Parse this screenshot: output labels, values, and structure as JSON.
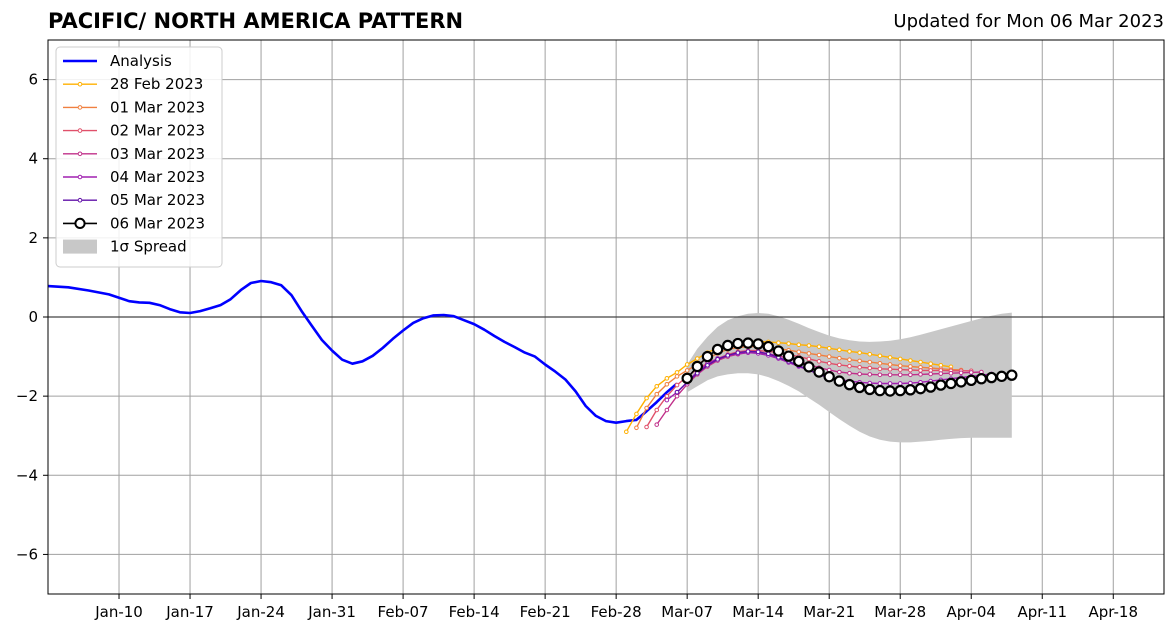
{
  "title": "PACIFIC/ NORTH AMERICA PATTERN",
  "updated": "Updated for Mon 06 Mar 2023",
  "chart_data": {
    "type": "line",
    "title": "PACIFIC/ NORTH AMERICA PATTERN",
    "xlabel": "",
    "ylabel": "",
    "xlim": [
      "2023-01-03",
      "2023-04-23"
    ],
    "ylim": [
      -7,
      7
    ],
    "grid": true,
    "legend_placement": "top-left",
    "x_ticks": [
      "Jan-10",
      "Jan-17",
      "Jan-24",
      "Jan-31",
      "Feb-07",
      "Feb-14",
      "Feb-21",
      "Feb-28",
      "Mar-07",
      "Mar-14",
      "Mar-21",
      "Mar-28",
      "Apr-04",
      "Apr-11",
      "Apr-18"
    ],
    "x_tick_dates": [
      "2023-01-10",
      "2023-01-17",
      "2023-01-24",
      "2023-01-31",
      "2023-02-07",
      "2023-02-14",
      "2023-02-21",
      "2023-02-28",
      "2023-03-07",
      "2023-03-14",
      "2023-03-21",
      "2023-03-28",
      "2023-04-04",
      "2023-04-11",
      "2023-04-18"
    ],
    "y_ticks": [
      -6,
      -4,
      -2,
      0,
      2,
      4,
      6
    ],
    "y_tick_labels": [
      "−6",
      "−4",
      "−2",
      "0",
      "2",
      "4",
      "6"
    ],
    "zero_line": 0,
    "series": [
      {
        "name": "Analysis",
        "kind": "analysis",
        "color": "#0000ff",
        "x": [
          "2023-01-03",
          "2023-01-05",
          "2023-01-07",
          "2023-01-09",
          "2023-01-11",
          "2023-01-12",
          "2023-01-13",
          "2023-01-14",
          "2023-01-15",
          "2023-01-16",
          "2023-01-17",
          "2023-01-18",
          "2023-01-19",
          "2023-01-20",
          "2023-01-21",
          "2023-01-22",
          "2023-01-23",
          "2023-01-24",
          "2023-01-25",
          "2023-01-26",
          "2023-01-27",
          "2023-01-28",
          "2023-01-29",
          "2023-01-30",
          "2023-01-31",
          "2023-02-01",
          "2023-02-02",
          "2023-02-03",
          "2023-02-04",
          "2023-02-05",
          "2023-02-06",
          "2023-02-07",
          "2023-02-08",
          "2023-02-09",
          "2023-02-10",
          "2023-02-11",
          "2023-02-12",
          "2023-02-13",
          "2023-02-14",
          "2023-02-15",
          "2023-02-16",
          "2023-02-17",
          "2023-02-18",
          "2023-02-19",
          "2023-02-20",
          "2023-02-21",
          "2023-02-22",
          "2023-02-23",
          "2023-02-24",
          "2023-02-25",
          "2023-02-26",
          "2023-02-27",
          "2023-02-28",
          "2023-03-01",
          "2023-03-02",
          "2023-03-03",
          "2023-03-04",
          "2023-03-05",
          "2023-03-06"
        ],
        "y": [
          0.78,
          0.75,
          0.67,
          0.57,
          0.4,
          0.37,
          0.36,
          0.3,
          0.2,
          0.12,
          0.1,
          0.15,
          0.22,
          0.3,
          0.45,
          0.68,
          0.86,
          0.91,
          0.88,
          0.8,
          0.55,
          0.15,
          -0.22,
          -0.58,
          -0.85,
          -1.08,
          -1.18,
          -1.12,
          -0.98,
          -0.78,
          -0.55,
          -0.34,
          -0.15,
          -0.03,
          0.04,
          0.05,
          0.02,
          -0.08,
          -0.18,
          -0.32,
          -0.48,
          -0.63,
          -0.76,
          -0.9,
          -1.0,
          -1.2,
          -1.38,
          -1.58,
          -1.88,
          -2.25,
          -2.5,
          -2.63,
          -2.67,
          -2.63,
          -2.6,
          -2.38,
          -2.15,
          -1.9,
          -1.68
        ]
      },
      {
        "name": "28 Feb 2023",
        "kind": "forecast",
        "color": "#ffb000",
        "x": [
          "2023-03-01",
          "2023-03-02",
          "2023-03-03",
          "2023-03-04",
          "2023-03-05",
          "2023-03-06",
          "2023-03-07",
          "2023-03-08",
          "2023-03-09",
          "2023-03-10",
          "2023-03-11",
          "2023-03-12",
          "2023-03-13",
          "2023-03-14",
          "2023-03-15",
          "2023-03-16",
          "2023-03-17",
          "2023-03-18",
          "2023-03-19",
          "2023-03-20",
          "2023-03-21",
          "2023-03-22",
          "2023-03-23",
          "2023-03-24",
          "2023-03-25",
          "2023-03-26",
          "2023-03-27",
          "2023-03-28",
          "2023-03-29",
          "2023-03-30",
          "2023-03-31",
          "2023-04-01",
          "2023-04-02"
        ],
        "y": [
          -2.9,
          -2.45,
          -2.05,
          -1.75,
          -1.55,
          -1.4,
          -1.2,
          -1.05,
          -0.9,
          -0.78,
          -0.7,
          -0.65,
          -0.62,
          -0.62,
          -0.63,
          -0.65,
          -0.67,
          -0.7,
          -0.72,
          -0.75,
          -0.79,
          -0.83,
          -0.87,
          -0.9,
          -0.94,
          -0.98,
          -1.02,
          -1.06,
          -1.1,
          -1.14,
          -1.18,
          -1.22,
          -1.26
        ]
      },
      {
        "name": "01 Mar 2023",
        "kind": "forecast",
        "color": "#f08040",
        "x": [
          "2023-03-02",
          "2023-03-03",
          "2023-03-04",
          "2023-03-05",
          "2023-03-06",
          "2023-03-07",
          "2023-03-08",
          "2023-03-09",
          "2023-03-10",
          "2023-03-11",
          "2023-03-12",
          "2023-03-13",
          "2023-03-14",
          "2023-03-15",
          "2023-03-16",
          "2023-03-17",
          "2023-03-18",
          "2023-03-19",
          "2023-03-20",
          "2023-03-21",
          "2023-03-22",
          "2023-03-23",
          "2023-03-24",
          "2023-03-25",
          "2023-03-26",
          "2023-03-27",
          "2023-03-28",
          "2023-03-29",
          "2023-03-30",
          "2023-03-31",
          "2023-04-01",
          "2023-04-02",
          "2023-04-03"
        ],
        "y": [
          -2.8,
          -2.3,
          -1.95,
          -1.7,
          -1.5,
          -1.35,
          -1.2,
          -1.05,
          -0.92,
          -0.82,
          -0.77,
          -0.75,
          -0.75,
          -0.77,
          -0.8,
          -0.84,
          -0.88,
          -0.92,
          -0.96,
          -1.0,
          -1.04,
          -1.08,
          -1.11,
          -1.14,
          -1.17,
          -1.2,
          -1.23,
          -1.25,
          -1.27,
          -1.29,
          -1.31,
          -1.33,
          -1.34
        ]
      },
      {
        "name": "02 Mar 2023",
        "kind": "forecast",
        "color": "#e0506a",
        "x": [
          "2023-03-03",
          "2023-03-04",
          "2023-03-05",
          "2023-03-06",
          "2023-03-07",
          "2023-03-08",
          "2023-03-09",
          "2023-03-10",
          "2023-03-11",
          "2023-03-12",
          "2023-03-13",
          "2023-03-14",
          "2023-03-15",
          "2023-03-16",
          "2023-03-17",
          "2023-03-18",
          "2023-03-19",
          "2023-03-20",
          "2023-03-21",
          "2023-03-22",
          "2023-03-23",
          "2023-03-24",
          "2023-03-25",
          "2023-03-26",
          "2023-03-27",
          "2023-03-28",
          "2023-03-29",
          "2023-03-30",
          "2023-03-31",
          "2023-04-01",
          "2023-04-02",
          "2023-04-03",
          "2023-04-04"
        ],
        "y": [
          -2.78,
          -2.35,
          -2.0,
          -1.72,
          -1.5,
          -1.32,
          -1.17,
          -1.05,
          -0.95,
          -0.88,
          -0.85,
          -0.85,
          -0.87,
          -0.9,
          -0.95,
          -1.0,
          -1.06,
          -1.12,
          -1.17,
          -1.21,
          -1.24,
          -1.27,
          -1.29,
          -1.31,
          -1.32,
          -1.33,
          -1.34,
          -1.35,
          -1.35,
          -1.35,
          -1.36,
          -1.36,
          -1.36
        ]
      },
      {
        "name": "03 Mar 2023",
        "kind": "forecast",
        "color": "#c0308a",
        "x": [
          "2023-03-04",
          "2023-03-05",
          "2023-03-06",
          "2023-03-07",
          "2023-03-08",
          "2023-03-09",
          "2023-03-10",
          "2023-03-11",
          "2023-03-12",
          "2023-03-13",
          "2023-03-14",
          "2023-03-15",
          "2023-03-16",
          "2023-03-17",
          "2023-03-18",
          "2023-03-19",
          "2023-03-20",
          "2023-03-21",
          "2023-03-22",
          "2023-03-23",
          "2023-03-24",
          "2023-03-25",
          "2023-03-26",
          "2023-03-27",
          "2023-03-28",
          "2023-03-29",
          "2023-03-30",
          "2023-03-31",
          "2023-04-01",
          "2023-04-02",
          "2023-04-03",
          "2023-04-04",
          "2023-04-05"
        ],
        "y": [
          -2.72,
          -2.35,
          -2.0,
          -1.7,
          -1.45,
          -1.25,
          -1.1,
          -1.0,
          -0.94,
          -0.9,
          -0.9,
          -0.93,
          -0.98,
          -1.05,
          -1.12,
          -1.2,
          -1.28,
          -1.34,
          -1.39,
          -1.42,
          -1.44,
          -1.45,
          -1.46,
          -1.46,
          -1.46,
          -1.46,
          -1.45,
          -1.44,
          -1.43,
          -1.42,
          -1.41,
          -1.4,
          -1.39
        ]
      },
      {
        "name": "04 Mar 2023",
        "kind": "forecast",
        "color": "#a020b0",
        "x": [
          "2023-03-05",
          "2023-03-06",
          "2023-03-07",
          "2023-03-08",
          "2023-03-09",
          "2023-03-10",
          "2023-03-11",
          "2023-03-12",
          "2023-03-13",
          "2023-03-14",
          "2023-03-15",
          "2023-03-16",
          "2023-03-17",
          "2023-03-18",
          "2023-03-19",
          "2023-03-20",
          "2023-03-21",
          "2023-03-22",
          "2023-03-23",
          "2023-03-24",
          "2023-03-25",
          "2023-03-26",
          "2023-03-27",
          "2023-03-28",
          "2023-03-29",
          "2023-03-30",
          "2023-03-31",
          "2023-04-01",
          "2023-04-02",
          "2023-04-03",
          "2023-04-04",
          "2023-04-05",
          "2023-04-06"
        ],
        "y": [
          -2.1,
          -1.9,
          -1.65,
          -1.38,
          -1.18,
          -1.05,
          -0.97,
          -0.93,
          -0.9,
          -0.92,
          -0.97,
          -1.05,
          -1.15,
          -1.25,
          -1.35,
          -1.44,
          -1.52,
          -1.58,
          -1.62,
          -1.65,
          -1.67,
          -1.68,
          -1.68,
          -1.68,
          -1.67,
          -1.65,
          -1.62,
          -1.59,
          -1.56,
          -1.53,
          -1.5,
          -1.47,
          -1.44
        ]
      },
      {
        "name": "05 Mar 2023",
        "kind": "forecast",
        "color": "#6010a8",
        "x": [
          "2023-03-06",
          "2023-03-07",
          "2023-03-08",
          "2023-03-09",
          "2023-03-10",
          "2023-03-11",
          "2023-03-12",
          "2023-03-13",
          "2023-03-14",
          "2023-03-15",
          "2023-03-16",
          "2023-03-17",
          "2023-03-18",
          "2023-03-19",
          "2023-03-20",
          "2023-03-21",
          "2023-03-22",
          "2023-03-23",
          "2023-03-24",
          "2023-03-25",
          "2023-03-26",
          "2023-03-27",
          "2023-03-28",
          "2023-03-29",
          "2023-03-30",
          "2023-03-31",
          "2023-04-01",
          "2023-04-02",
          "2023-04-03",
          "2023-04-04",
          "2023-04-05",
          "2023-04-06",
          "2023-04-07"
        ],
        "y": [
          -1.9,
          -1.65,
          -1.42,
          -1.22,
          -1.07,
          -0.97,
          -0.9,
          -0.87,
          -0.88,
          -0.93,
          -1.02,
          -1.12,
          -1.23,
          -1.34,
          -1.45,
          -1.55,
          -1.63,
          -1.7,
          -1.75,
          -1.79,
          -1.81,
          -1.82,
          -1.82,
          -1.81,
          -1.79,
          -1.76,
          -1.72,
          -1.68,
          -1.64,
          -1.6,
          -1.56,
          -1.52,
          -1.49
        ]
      },
      {
        "name": "06 Mar 2023",
        "kind": "latest",
        "color": "#000000",
        "x": [
          "2023-03-07",
          "2023-03-08",
          "2023-03-09",
          "2023-03-10",
          "2023-03-11",
          "2023-03-12",
          "2023-03-13",
          "2023-03-14",
          "2023-03-15",
          "2023-03-16",
          "2023-03-17",
          "2023-03-18",
          "2023-03-19",
          "2023-03-20",
          "2023-03-21",
          "2023-03-22",
          "2023-03-23",
          "2023-03-24",
          "2023-03-25",
          "2023-03-26",
          "2023-03-27",
          "2023-03-28",
          "2023-03-29",
          "2023-03-30",
          "2023-03-31",
          "2023-04-01",
          "2023-04-02",
          "2023-04-03",
          "2023-04-04",
          "2023-04-05",
          "2023-04-06",
          "2023-04-07",
          "2023-04-08"
        ],
        "y": [
          -1.55,
          -1.25,
          -1.0,
          -0.82,
          -0.72,
          -0.67,
          -0.66,
          -0.68,
          -0.75,
          -0.86,
          -0.99,
          -1.12,
          -1.26,
          -1.39,
          -1.51,
          -1.62,
          -1.71,
          -1.78,
          -1.83,
          -1.86,
          -1.87,
          -1.86,
          -1.84,
          -1.81,
          -1.77,
          -1.72,
          -1.68,
          -1.64,
          -1.6,
          -1.56,
          -1.53,
          -1.5,
          -1.47
        ]
      }
    ],
    "spread": {
      "name": "1σ Spread",
      "color": "#c8c8c8",
      "x": [
        "2023-03-07",
        "2023-03-08",
        "2023-03-09",
        "2023-03-10",
        "2023-03-11",
        "2023-03-12",
        "2023-03-13",
        "2023-03-14",
        "2023-03-15",
        "2023-03-16",
        "2023-03-17",
        "2023-03-18",
        "2023-03-19",
        "2023-03-20",
        "2023-03-21",
        "2023-03-22",
        "2023-03-23",
        "2023-03-24",
        "2023-03-25",
        "2023-03-26",
        "2023-03-27",
        "2023-03-28",
        "2023-03-29",
        "2023-03-30",
        "2023-03-31",
        "2023-04-01",
        "2023-04-02",
        "2023-04-03",
        "2023-04-04",
        "2023-04-05",
        "2023-04-06",
        "2023-04-07",
        "2023-04-08"
      ],
      "upper": [
        -1.2,
        -0.8,
        -0.5,
        -0.25,
        -0.08,
        0.02,
        0.08,
        0.1,
        0.08,
        0.02,
        -0.07,
        -0.17,
        -0.28,
        -0.38,
        -0.47,
        -0.54,
        -0.59,
        -0.62,
        -0.63,
        -0.62,
        -0.6,
        -0.56,
        -0.51,
        -0.45,
        -0.38,
        -0.31,
        -0.24,
        -0.17,
        -0.1,
        -0.03,
        0.03,
        0.08,
        0.11
      ],
      "lower": [
        -1.9,
        -1.75,
        -1.6,
        -1.5,
        -1.45,
        -1.42,
        -1.42,
        -1.45,
        -1.52,
        -1.62,
        -1.74,
        -1.88,
        -2.05,
        -2.22,
        -2.4,
        -2.58,
        -2.75,
        -2.9,
        -3.02,
        -3.1,
        -3.15,
        -3.17,
        -3.17,
        -3.15,
        -3.13,
        -3.1,
        -3.08,
        -3.06,
        -3.05,
        -3.05,
        -3.05,
        -3.05,
        -3.05
      ]
    }
  }
}
